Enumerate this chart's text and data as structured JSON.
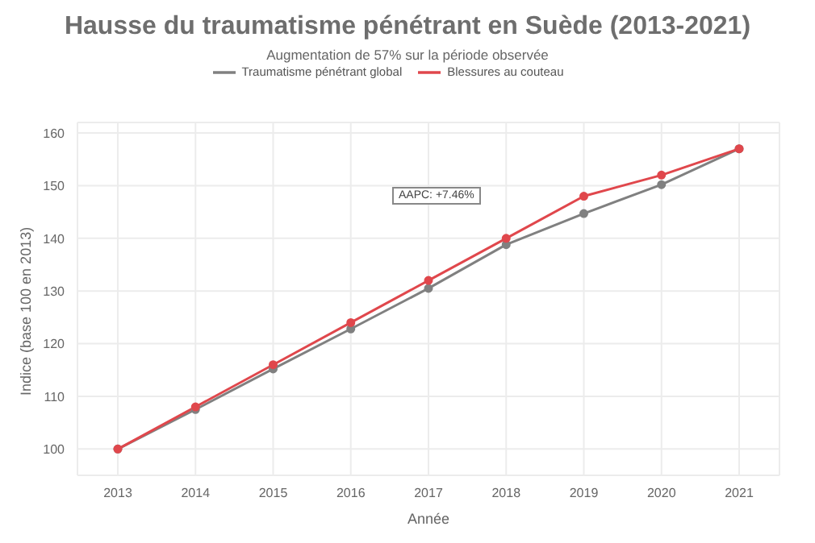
{
  "chart_data": {
    "type": "line",
    "title": "Hausse du traumatisme pénétrant en Suède (2013-2021)",
    "subtitle": "Augmentation de 57% sur la période observée",
    "xlabel": "Année",
    "ylabel": "Indice (base 100 en 2013)",
    "categories": [
      "2013",
      "2014",
      "2015",
      "2016",
      "2017",
      "2018",
      "2019",
      "2020",
      "2021"
    ],
    "series": [
      {
        "name": "Traumatisme pénétrant global",
        "color": "#808080",
        "values": [
          100,
          107.5,
          115.2,
          122.8,
          130.5,
          138.8,
          144.7,
          150.2,
          157
        ]
      },
      {
        "name": "Blessures au couteau",
        "color": "#e0474c",
        "values": [
          100,
          108,
          116,
          124,
          132,
          140,
          148,
          152,
          157
        ]
      }
    ],
    "ylim": [
      95,
      162
    ],
    "yticks": [
      100,
      110,
      120,
      130,
      140,
      150,
      160
    ],
    "grid": true,
    "legend": "top",
    "marker": "circle",
    "line_style": "solid",
    "annotations": [
      "AAPC: +7.46%"
    ]
  }
}
